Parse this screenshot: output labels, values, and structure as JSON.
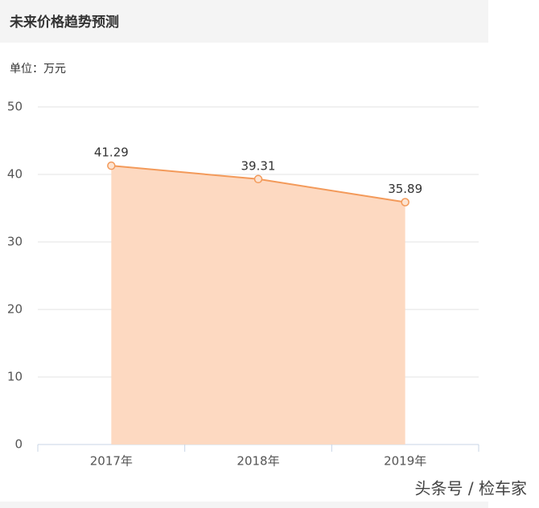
{
  "header": {
    "title": "未来价格趋势预测"
  },
  "unit": "单位：万元",
  "chart_data": {
    "type": "area",
    "categories": [
      "2017年",
      "2018年",
      "2019年"
    ],
    "values": [
      41.29,
      39.31,
      35.89
    ],
    "color": "#f39a5a",
    "fill": "#fdd9c1",
    "ylim": [
      0,
      50
    ],
    "yticks": [
      0,
      10,
      20,
      30,
      40,
      50
    ],
    "grid": true
  },
  "watermark": "头条号 / 检车家"
}
